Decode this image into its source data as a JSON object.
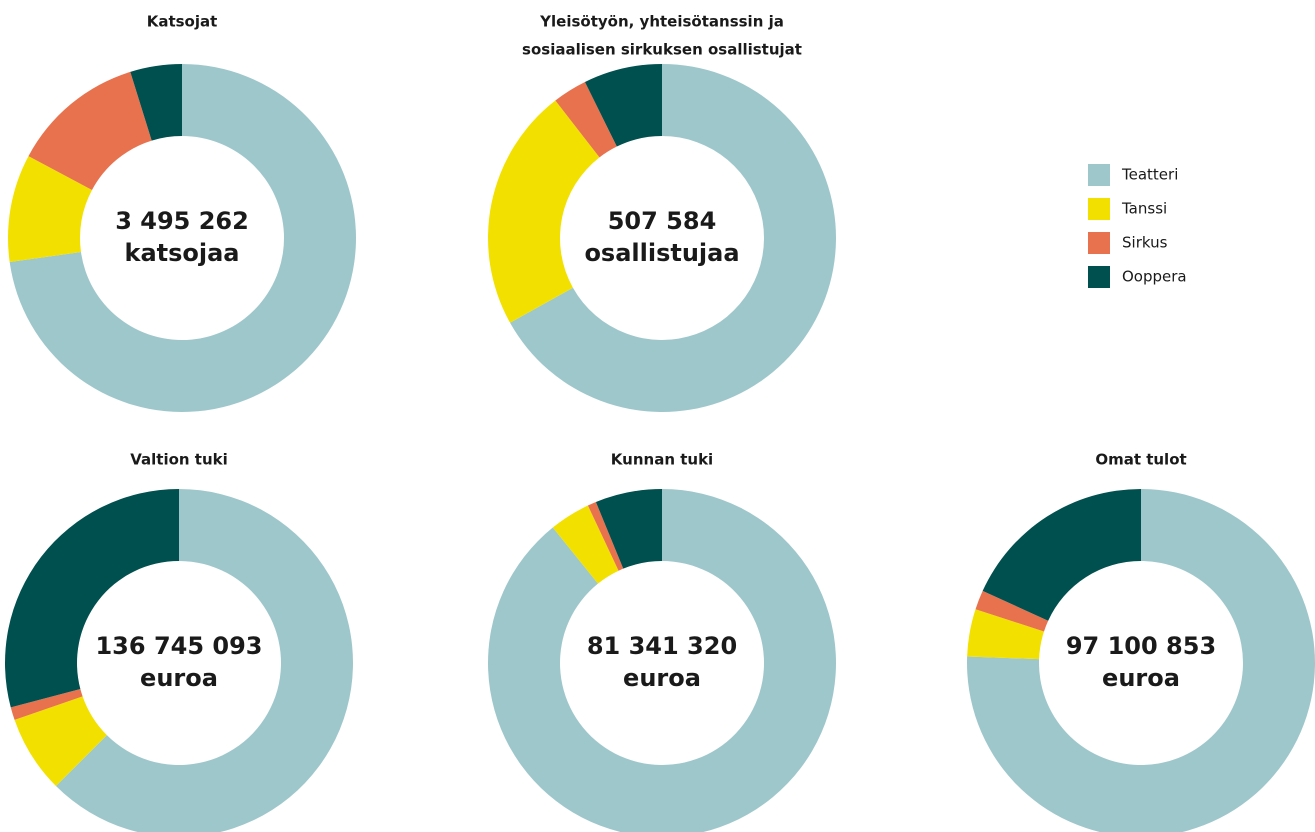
{
  "chart_data": [
    {
      "type": "donut",
      "title": [
        "Katsojat"
      ],
      "center_label": [
        "3 495 262",
        "katsojaa"
      ],
      "categories": [
        "Teatteri",
        "Tanssi",
        "Sirkus",
        "Ooppera"
      ],
      "colors": [
        "#9ec7cc",
        "#f2e100",
        "#e8724e",
        "#00504f"
      ],
      "values": [
        72.8,
        10,
        12.4,
        4.8
      ]
    },
    {
      "type": "donut",
      "title": [
        "Yleisötyön, yhteisötanssin ja",
        "sosiaalisen sirkuksen osallistujat"
      ],
      "center_label": [
        "507 584",
        "osallistujaa"
      ],
      "categories": [
        "Teatteri",
        "Tanssi",
        "Sirkus",
        "Ooppera"
      ],
      "colors": [
        "#9ec7cc",
        "#f2e100",
        "#e8724e",
        "#00504f"
      ],
      "values": [
        66.9,
        22.6,
        3.2,
        7.3
      ]
    },
    {
      "type": "donut",
      "title": [
        "Valtion tuki"
      ],
      "center_label": [
        "136 745 093",
        "euroa"
      ],
      "categories": [
        "Teatteri",
        "Tanssi",
        "Sirkus",
        "Ooppera"
      ],
      "colors": [
        "#9ec7cc",
        "#f2e100",
        "#e8724e",
        "#00504f"
      ],
      "values": [
        62.5,
        7.2,
        1.2,
        29.1
      ]
    },
    {
      "type": "donut",
      "title": [
        "Kunnan tuki"
      ],
      "center_label": [
        "81 341 320",
        "euroa"
      ],
      "categories": [
        "Teatteri",
        "Tanssi",
        "Sirkus",
        "Ooppera"
      ],
      "colors": [
        "#9ec7cc",
        "#f2e100",
        "#e8724e",
        "#00504f"
      ],
      "values": [
        89.2,
        3.8,
        0.8,
        6.2
      ]
    },
    {
      "type": "donut",
      "title": [
        "Omat tulot"
      ],
      "center_label": [
        "97 100 853",
        "euroa"
      ],
      "categories": [
        "Teatteri",
        "Tanssi",
        "Sirkus",
        "Ooppera"
      ],
      "colors": [
        "#9ec7cc",
        "#f2e100",
        "#e8724e",
        "#00504f"
      ],
      "values": [
        75.6,
        4.4,
        1.8,
        18.2
      ]
    }
  ]
}
